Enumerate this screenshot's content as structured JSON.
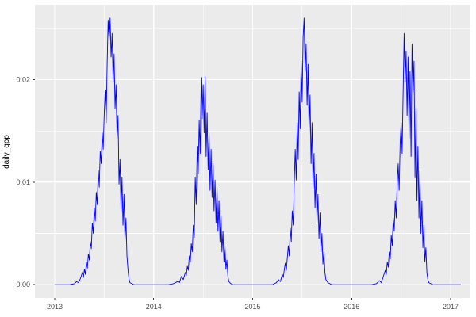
{
  "figure": {
    "kind": "ggplot-line-chart"
  },
  "chart_data": {
    "type": "line",
    "title": "",
    "xlabel": "",
    "ylabel": "daily_gpp",
    "series_name": "daily_gpp",
    "line_color": "#0000ff",
    "panel_bg": "#ebebeb",
    "grid_color": "#ffffff",
    "tick_text_color": "#4d4d4d",
    "tick_mark_color": "#333333",
    "xlim": [
      2012.8,
      2017.2
    ],
    "ylim": [
      -0.0013,
      0.0273
    ],
    "x_ticks": [
      2013,
      2014,
      2015,
      2016,
      2017
    ],
    "x_tick_labels": [
      "2013",
      "2014",
      "2015",
      "2016",
      "2017"
    ],
    "x_minor_ticks": [
      2013.5,
      2014.5,
      2015.5,
      2016.5
    ],
    "y_ticks": [
      0.0,
      0.01,
      0.02
    ],
    "y_tick_labels": [
      "0.00",
      "0.01",
      "0.02"
    ],
    "y_minor_ticks": [
      0.005,
      0.015,
      0.025
    ],
    "grid": true,
    "legend": "none",
    "points": [
      [
        2013.0,
        0
      ],
      [
        2013.05,
        0
      ],
      [
        2013.1,
        0
      ],
      [
        2013.15,
        0
      ],
      [
        2013.2,
        0.0001
      ],
      [
        2013.22,
        0.0003
      ],
      [
        2013.24,
        0.0002
      ],
      [
        2013.26,
        0.0006
      ],
      [
        2013.28,
        0.0012
      ],
      [
        2013.29,
        0.0007
      ],
      [
        2013.3,
        0.0015
      ],
      [
        2013.31,
        0.001
      ],
      [
        2013.32,
        0.0022
      ],
      [
        2013.33,
        0.0016
      ],
      [
        2013.34,
        0.003
      ],
      [
        2013.35,
        0.0024
      ],
      [
        2013.36,
        0.0042
      ],
      [
        2013.37,
        0.0035
      ],
      [
        2013.38,
        0.006
      ],
      [
        2013.39,
        0.005
      ],
      [
        2013.4,
        0.0075
      ],
      [
        2013.41,
        0.0062
      ],
      [
        2013.42,
        0.009
      ],
      [
        2013.43,
        0.0078
      ],
      [
        2013.44,
        0.0112
      ],
      [
        2013.45,
        0.0095
      ],
      [
        2013.46,
        0.013
      ],
      [
        2013.47,
        0.0118
      ],
      [
        2013.48,
        0.0148
      ],
      [
        2013.49,
        0.0132
      ],
      [
        2013.5,
        0.0165
      ],
      [
        2013.51,
        0.019
      ],
      [
        2013.52,
        0.0158
      ],
      [
        2013.53,
        0.0215
      ],
      [
        2013.54,
        0.0258
      ],
      [
        2013.55,
        0.0238
      ],
      [
        2013.56,
        0.026
      ],
      [
        2013.57,
        0.0222
      ],
      [
        2013.58,
        0.0245
      ],
      [
        2013.59,
        0.0198
      ],
      [
        2013.6,
        0.0225
      ],
      [
        2013.61,
        0.0172
      ],
      [
        2013.62,
        0.0195
      ],
      [
        2013.63,
        0.0142
      ],
      [
        2013.64,
        0.0165
      ],
      [
        2013.65,
        0.0098
      ],
      [
        2013.66,
        0.0122
      ],
      [
        2013.67,
        0.0072
      ],
      [
        2013.68,
        0.0105
      ],
      [
        2013.69,
        0.0058
      ],
      [
        2013.7,
        0.0088
      ],
      [
        2013.71,
        0.0042
      ],
      [
        2013.72,
        0.0065
      ],
      [
        2013.73,
        0.0028
      ],
      [
        2013.74,
        0.0015
      ],
      [
        2013.75,
        0.0006
      ],
      [
        2013.76,
        0.0002
      ],
      [
        2013.78,
        0.0001
      ],
      [
        2013.8,
        0
      ],
      [
        2013.85,
        0
      ],
      [
        2013.9,
        0
      ],
      [
        2013.95,
        0
      ],
      [
        2014.0,
        0
      ],
      [
        2014.05,
        0
      ],
      [
        2014.1,
        0
      ],
      [
        2014.15,
        0
      ],
      [
        2014.2,
        0.0001
      ],
      [
        2014.24,
        0.0003
      ],
      [
        2014.26,
        0.0002
      ],
      [
        2014.28,
        0.0008
      ],
      [
        2014.3,
        0.0005
      ],
      [
        2014.32,
        0.0012
      ],
      [
        2014.33,
        0.0009
      ],
      [
        2014.34,
        0.0018
      ],
      [
        2014.35,
        0.0014
      ],
      [
        2014.36,
        0.0028
      ],
      [
        2014.37,
        0.0022
      ],
      [
        2014.38,
        0.004
      ],
      [
        2014.39,
        0.0032
      ],
      [
        2014.4,
        0.0058
      ],
      [
        2014.41,
        0.0046
      ],
      [
        2014.42,
        0.0105
      ],
      [
        2014.43,
        0.0078
      ],
      [
        2014.44,
        0.0135
      ],
      [
        2014.45,
        0.0108
      ],
      [
        2014.46,
        0.016
      ],
      [
        2014.47,
        0.0128
      ],
      [
        2014.48,
        0.0202
      ],
      [
        2014.49,
        0.0162
      ],
      [
        2014.5,
        0.0195
      ],
      [
        2014.51,
        0.0148
      ],
      [
        2014.52,
        0.0203
      ],
      [
        2014.53,
        0.0125
      ],
      [
        2014.54,
        0.0168
      ],
      [
        2014.55,
        0.0112
      ],
      [
        2014.56,
        0.0148
      ],
      [
        2014.57,
        0.0092
      ],
      [
        2014.58,
        0.0132
      ],
      [
        2014.59,
        0.0085
      ],
      [
        2014.6,
        0.0118
      ],
      [
        2014.61,
        0.0072
      ],
      [
        2014.62,
        0.0102
      ],
      [
        2014.63,
        0.006
      ],
      [
        2014.64,
        0.0095
      ],
      [
        2014.65,
        0.0052
      ],
      [
        2014.66,
        0.0082
      ],
      [
        2014.67,
        0.0042
      ],
      [
        2014.68,
        0.0068
      ],
      [
        2014.69,
        0.0032
      ],
      [
        2014.7,
        0.0052
      ],
      [
        2014.71,
        0.0022
      ],
      [
        2014.72,
        0.0038
      ],
      [
        2014.73,
        0.0015
      ],
      [
        2014.74,
        0.0024
      ],
      [
        2014.75,
        0.0008
      ],
      [
        2014.76,
        0.0003
      ],
      [
        2014.78,
        0.0001
      ],
      [
        2014.8,
        0
      ],
      [
        2014.85,
        0
      ],
      [
        2014.9,
        0
      ],
      [
        2014.95,
        0
      ],
      [
        2015.0,
        0
      ],
      [
        2015.05,
        0
      ],
      [
        2015.1,
        0
      ],
      [
        2015.15,
        0
      ],
      [
        2015.2,
        0
      ],
      [
        2015.24,
        0.0002
      ],
      [
        2015.26,
        0.0005
      ],
      [
        2015.28,
        0.0003
      ],
      [
        2015.3,
        0.001
      ],
      [
        2015.31,
        0.0007
      ],
      [
        2015.32,
        0.0015
      ],
      [
        2015.33,
        0.0021
      ],
      [
        2015.34,
        0.0014
      ],
      [
        2015.35,
        0.0026
      ],
      [
        2015.36,
        0.0038
      ],
      [
        2015.37,
        0.0028
      ],
      [
        2015.38,
        0.0055
      ],
      [
        2015.39,
        0.0042
      ],
      [
        2015.4,
        0.0072
      ],
      [
        2015.41,
        0.0058
      ],
      [
        2015.42,
        0.0098
      ],
      [
        2015.43,
        0.0132
      ],
      [
        2015.44,
        0.0102
      ],
      [
        2015.45,
        0.0158
      ],
      [
        2015.46,
        0.0122
      ],
      [
        2015.47,
        0.0188
      ],
      [
        2015.48,
        0.0152
      ],
      [
        2015.49,
        0.0218
      ],
      [
        2015.5,
        0.0178
      ],
      [
        2015.51,
        0.0242
      ],
      [
        2015.52,
        0.026
      ],
      [
        2015.53,
        0.0208
      ],
      [
        2015.54,
        0.0235
      ],
      [
        2015.55,
        0.0175
      ],
      [
        2015.56,
        0.0215
      ],
      [
        2015.57,
        0.0148
      ],
      [
        2015.58,
        0.0185
      ],
      [
        2015.59,
        0.0118
      ],
      [
        2015.6,
        0.0158
      ],
      [
        2015.61,
        0.0095
      ],
      [
        2015.62,
        0.0128
      ],
      [
        2015.63,
        0.0075
      ],
      [
        2015.64,
        0.0108
      ],
      [
        2015.65,
        0.006
      ],
      [
        2015.66,
        0.0088
      ],
      [
        2015.67,
        0.0045
      ],
      [
        2015.68,
        0.007
      ],
      [
        2015.69,
        0.0032
      ],
      [
        2015.7,
        0.005
      ],
      [
        2015.71,
        0.002
      ],
      [
        2015.72,
        0.0032
      ],
      [
        2015.73,
        0.0012
      ],
      [
        2015.74,
        0.0005
      ],
      [
        2015.76,
        0.0002
      ],
      [
        2015.78,
        0.0001
      ],
      [
        2015.8,
        0
      ],
      [
        2015.85,
        0
      ],
      [
        2015.9,
        0
      ],
      [
        2015.95,
        0
      ],
      [
        2016.0,
        0
      ],
      [
        2016.05,
        0
      ],
      [
        2016.1,
        0
      ],
      [
        2016.15,
        0
      ],
      [
        2016.2,
        0
      ],
      [
        2016.25,
        0.0001
      ],
      [
        2016.28,
        0.0004
      ],
      [
        2016.3,
        0.0002
      ],
      [
        2016.32,
        0.0008
      ],
      [
        2016.34,
        0.0014
      ],
      [
        2016.35,
        0.001
      ],
      [
        2016.36,
        0.0022
      ],
      [
        2016.37,
        0.0017
      ],
      [
        2016.38,
        0.0032
      ],
      [
        2016.39,
        0.0025
      ],
      [
        2016.4,
        0.0048
      ],
      [
        2016.41,
        0.0038
      ],
      [
        2016.42,
        0.0065
      ],
      [
        2016.43,
        0.0052
      ],
      [
        2016.44,
        0.0082
      ],
      [
        2016.45,
        0.0065
      ],
      [
        2016.46,
        0.0098
      ],
      [
        2016.47,
        0.0118
      ],
      [
        2016.48,
        0.0092
      ],
      [
        2016.49,
        0.0138
      ],
      [
        2016.5,
        0.0158
      ],
      [
        2016.51,
        0.0128
      ],
      [
        2016.52,
        0.0188
      ],
      [
        2016.53,
        0.0245
      ],
      [
        2016.54,
        0.0198
      ],
      [
        2016.55,
        0.0228
      ],
      [
        2016.56,
        0.0165
      ],
      [
        2016.57,
        0.0222
      ],
      [
        2016.58,
        0.0142
      ],
      [
        2016.59,
        0.0208
      ],
      [
        2016.6,
        0.0125
      ],
      [
        2016.61,
        0.0235
      ],
      [
        2016.62,
        0.0188
      ],
      [
        2016.63,
        0.0218
      ],
      [
        2016.64,
        0.0105
      ],
      [
        2016.65,
        0.0172
      ],
      [
        2016.66,
        0.0082
      ],
      [
        2016.67,
        0.0135
      ],
      [
        2016.68,
        0.0065
      ],
      [
        2016.69,
        0.0112
      ],
      [
        2016.7,
        0.005
      ],
      [
        2016.71,
        0.0082
      ],
      [
        2016.72,
        0.0036
      ],
      [
        2016.73,
        0.0058
      ],
      [
        2016.74,
        0.0022
      ],
      [
        2016.75,
        0.0036
      ],
      [
        2016.76,
        0.0012
      ],
      [
        2016.77,
        0.0005
      ],
      [
        2016.78,
        0.0002
      ],
      [
        2016.8,
        0.0001
      ],
      [
        2016.82,
        0
      ],
      [
        2016.85,
        0
      ],
      [
        2016.9,
        0
      ],
      [
        2016.95,
        0
      ],
      [
        2017.0,
        0
      ],
      [
        2017.05,
        0
      ],
      [
        2017.1,
        0
      ]
    ]
  }
}
